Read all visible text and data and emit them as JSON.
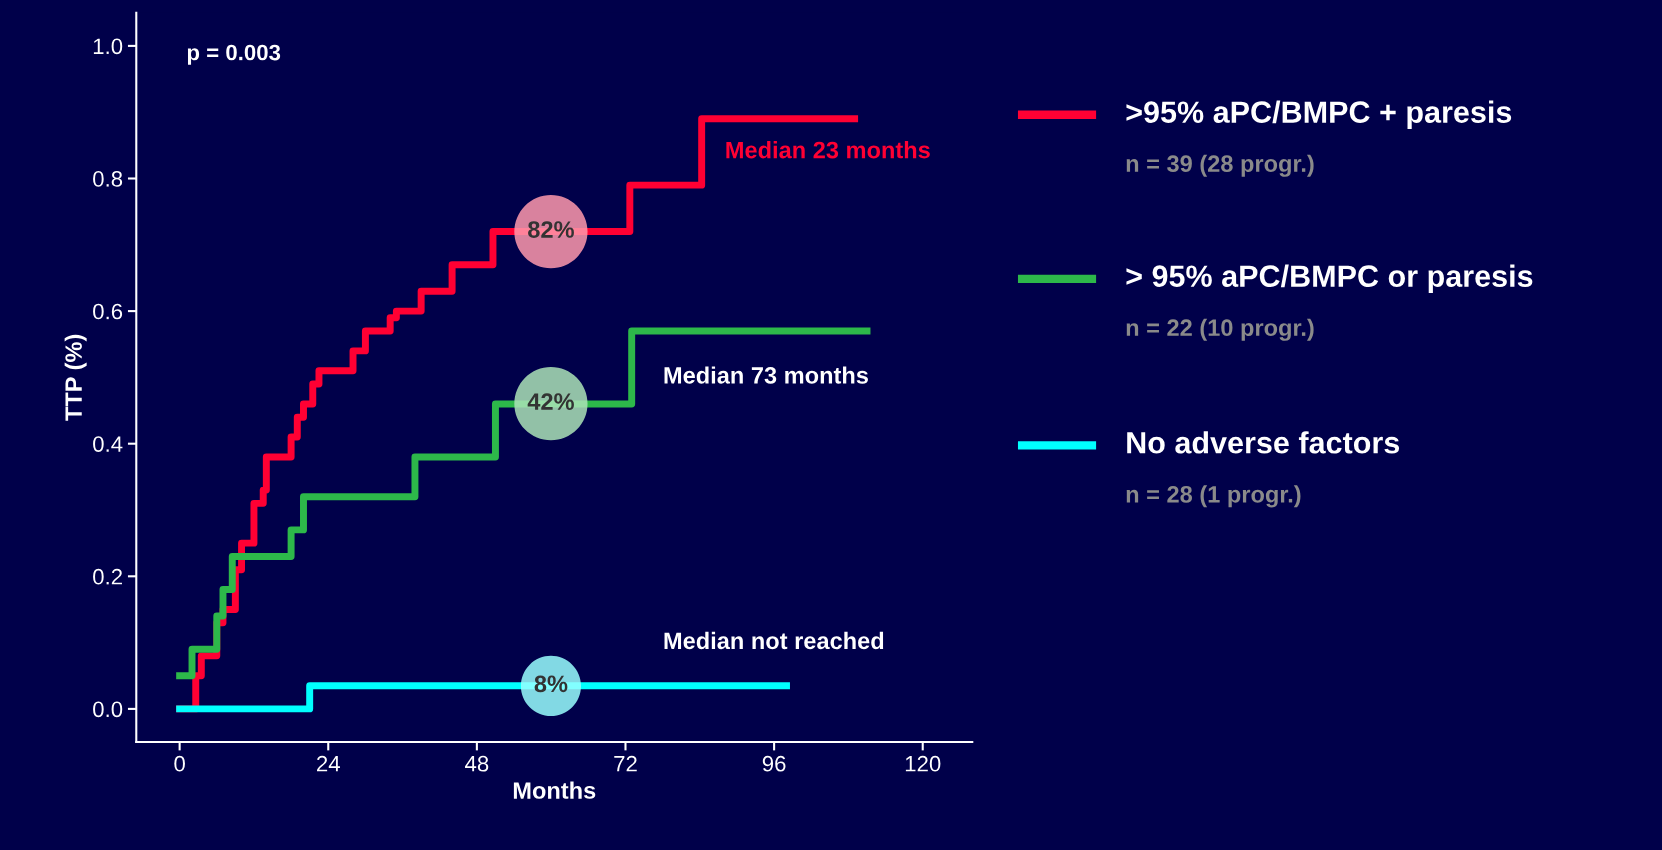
{
  "chart_data": {
    "type": "step",
    "xlabel": "Months",
    "ylabel": "TTP (%)",
    "xlim": [
      -7,
      128
    ],
    "ylim": [
      -0.05,
      1.05
    ],
    "xticks": [
      0,
      24,
      48,
      72,
      96,
      120
    ],
    "yticks": [
      {
        "value": 0,
        "label": "0.0"
      },
      {
        "value": 0.2,
        "label": "0.2"
      },
      {
        "value": 0.4,
        "label": "0.4"
      },
      {
        "value": 0.6,
        "label": "0.6"
      },
      {
        "value": 0.8,
        "label": "0.8"
      },
      {
        "value": 1.0,
        "label": "1.0"
      }
    ],
    "grid": false,
    "legend": "right",
    "marker": "none",
    "line_style": "solid",
    "series": [
      {
        "name": ">95% aPC/BMPC + paresis",
        "color": "#ff0033",
        "x": [
          0,
          2.6,
          3.5,
          6,
          7,
          9,
          10,
          12,
          13.5,
          14,
          18,
          19,
          20,
          21.5,
          22.5,
          28,
          30,
          34,
          35,
          39,
          44,
          50.6,
          72.7,
          84.3,
          109
        ],
        "values": [
          0,
          0.05,
          0.08,
          0.13,
          0.15,
          0.21,
          0.25,
          0.31,
          0.33,
          0.38,
          0.41,
          0.44,
          0.46,
          0.49,
          0.51,
          0.54,
          0.57,
          0.59,
          0.6,
          0.63,
          0.67,
          0.72,
          0.79,
          0.89,
          0.89
        ]
      },
      {
        "name": "> 95% aPC/BMPC or paresis",
        "color": "#2db84a",
        "x": [
          0,
          2,
          6,
          7,
          8.5,
          18,
          20,
          38,
          51,
          73,
          111
        ],
        "values": [
          0.05,
          0.09,
          0.14,
          0.18,
          0.23,
          0.27,
          0.32,
          0.38,
          0.46,
          0.57,
          0.57
        ]
      },
      {
        "name": "No adverse factors",
        "color": "#00ffff",
        "x": [
          0,
          21,
          98
        ],
        "values": [
          0,
          0.035,
          0.035
        ]
      }
    ],
    "annotations": [
      "p = 0.003",
      "Median 23 months",
      "Median 73 months",
      "Median not reached",
      "82%",
      "42%",
      "8%",
      "n = 39 (28 progr.)",
      "n = 22 (10 progr.)",
      "n = 28 (1 progr.)"
    ]
  }
}
